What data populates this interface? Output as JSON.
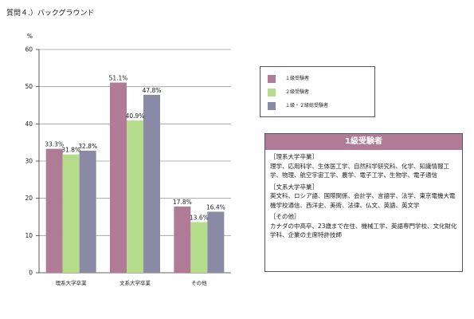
{
  "page": {
    "title": "質問４.）バックグラウンド"
  },
  "colors": {
    "grade1": "#b07b96",
    "grade2": "#b5dc8a",
    "both": "#8a8aa6",
    "info_header": "#b07b96"
  },
  "chart_data": {
    "type": "bar",
    "title": "",
    "ylabel": "%",
    "ylim": [
      0,
      60
    ],
    "yticks": [
      "0",
      "10",
      "20",
      "30",
      "40",
      "50",
      "60"
    ],
    "categories": [
      "理系大学卒業",
      "文系大学卒業",
      "その他"
    ],
    "series": [
      {
        "name": "１級受験者",
        "values": [
          33.3,
          51.1,
          17.8
        ],
        "labels": [
          "33.3%",
          "51.1%",
          "17.8%"
        ]
      },
      {
        "name": "２級受験者",
        "values": [
          31.8,
          40.9,
          13.6
        ],
        "labels": [
          "31.8%",
          "40.9%",
          "13.6%"
        ]
      },
      {
        "name": "１級・２級総受験者",
        "values": [
          32.8,
          47.8,
          16.4
        ],
        "labels": [
          "32.8%",
          "47.8%",
          "16.4%"
        ]
      }
    ],
    "legend": "right"
  },
  "info_box": {
    "header": "1級受験者",
    "sections": [
      {
        "title": "［理系大学卒業］",
        "body": "理学、応用科学、生体医工学、自然科学研究科、化学、知識情報工学、物理、航空宇宙工学、農学、電子工学、生物学、電子通信"
      },
      {
        "title": "［文系大学卒業］",
        "body": "英文科、ロシア語、国際関係、会計学、言語学、法学、東京電機大電機学校通信、西洋史、美術、法律、仏文、英語、英文学"
      },
      {
        "title": "［その他］",
        "body": "カナダの中高卒、23歳まで在住、機械工学、英語専門学校、文化財化学科、企業の主席特許技師"
      }
    ]
  }
}
